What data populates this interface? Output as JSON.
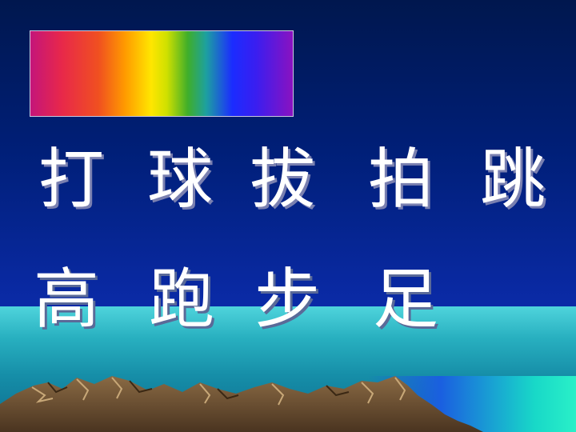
{
  "row1": [
    "打",
    "球",
    "拔",
    "拍",
    "跳"
  ],
  "row2": [
    "高",
    "跑",
    "步",
    "足"
  ],
  "colors": {
    "sky": "#001f78",
    "sea": "#28b0c0",
    "text": "#ffffff",
    "hills": "#6e5030"
  }
}
